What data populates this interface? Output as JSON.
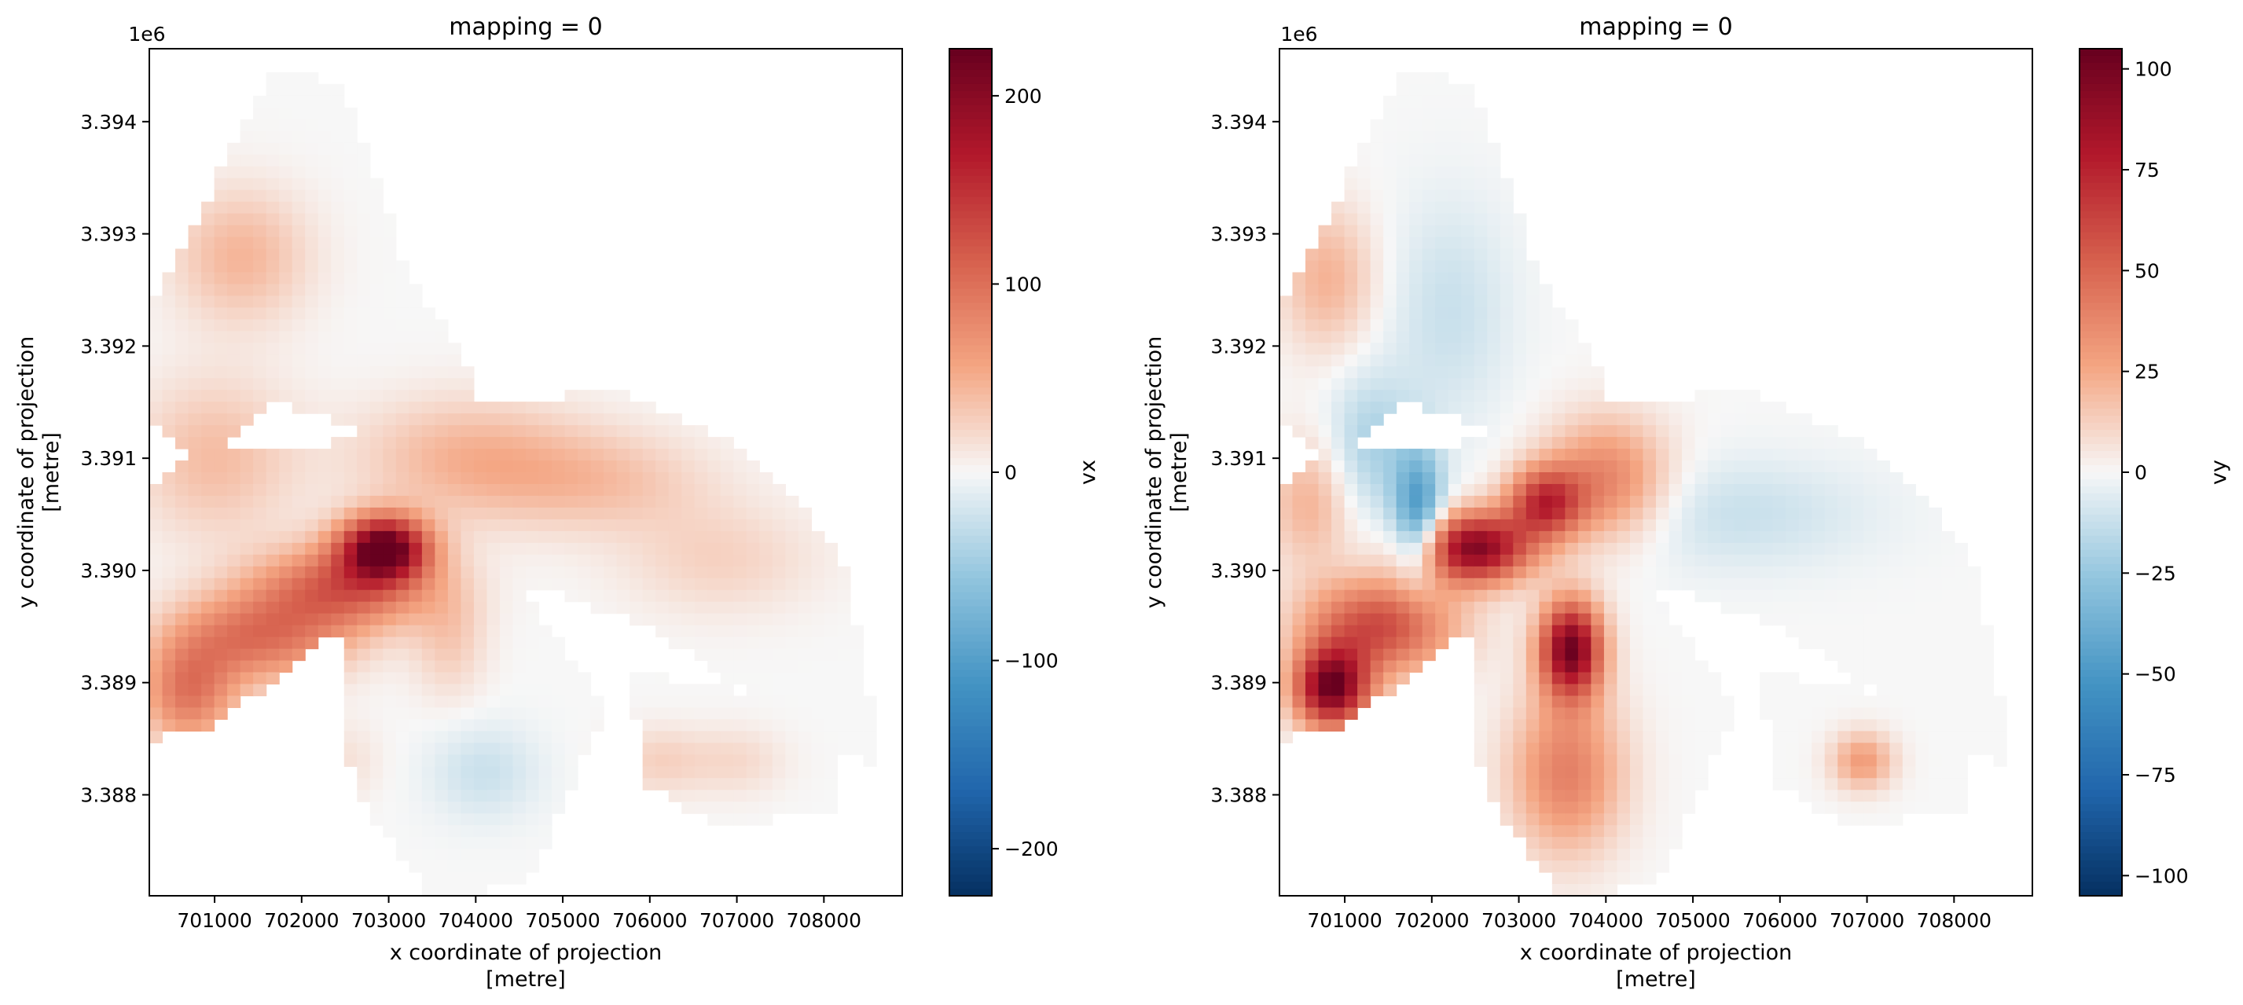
{
  "chart_data": [
    {
      "type": "heatmap",
      "title": "mapping = 0",
      "xlabel": "x coordinate of projection",
      "xlabel_unit": "[metre]",
      "ylabel": "y coordinate of projection",
      "ylabel_unit": "[metre]",
      "y_offset_label": "1e6",
      "xlim": [
        700250,
        708900
      ],
      "ylim": [
        3.3871,
        3.39465
      ],
      "x_ticks": [
        701000,
        702000,
        703000,
        704000,
        705000,
        706000,
        707000,
        708000
      ],
      "x_tick_labels": [
        "701000",
        "702000",
        "703000",
        "704000",
        "705000",
        "706000",
        "707000",
        "708000"
      ],
      "y_ticks": [
        3.388,
        3.389,
        3.39,
        3.391,
        3.392,
        3.393,
        3.394
      ],
      "y_tick_labels": [
        "3.388",
        "3.389",
        "3.390",
        "3.391",
        "3.392",
        "3.393",
        "3.394"
      ],
      "colorbar": {
        "label": "vx",
        "colormap": "RdBu_r",
        "vmin": -225,
        "vmax": 225,
        "ticks": [
          -200,
          -100,
          0,
          100,
          200
        ],
        "tick_labels": [
          "−200",
          "−100",
          "0",
          "100",
          "200"
        ]
      },
      "features": [
        {
          "x": 702950,
          "y": 3.3902,
          "sx": 350,
          "sy": 200,
          "value": 220
        },
        {
          "x": 702500,
          "y": 3.38985,
          "sx": 700,
          "sy": 260,
          "value": 110
        },
        {
          "x": 701500,
          "y": 3.3894,
          "sx": 700,
          "sy": 280,
          "value": 95
        },
        {
          "x": 700700,
          "y": 3.3889,
          "sx": 380,
          "sy": 320,
          "value": 90
        },
        {
          "x": 701000,
          "y": 3.391,
          "sx": 650,
          "sy": 500,
          "value": 40
        },
        {
          "x": 701300,
          "y": 3.3928,
          "sx": 550,
          "sy": 420,
          "value": 45
        },
        {
          "x": 703900,
          "y": 3.391,
          "sx": 900,
          "sy": 380,
          "value": 45
        },
        {
          "x": 705400,
          "y": 3.3908,
          "sx": 900,
          "sy": 320,
          "value": 35
        },
        {
          "x": 706800,
          "y": 3.3901,
          "sx": 800,
          "sy": 350,
          "value": 25
        },
        {
          "x": 703700,
          "y": 3.3894,
          "sx": 300,
          "sy": 380,
          "value": 30
        },
        {
          "x": 704100,
          "y": 3.3882,
          "sx": 450,
          "sy": 300,
          "value": -25
        },
        {
          "x": 706100,
          "y": 3.3883,
          "sx": 380,
          "sy": 220,
          "value": 25
        },
        {
          "x": 707000,
          "y": 3.3883,
          "sx": 400,
          "sy": 220,
          "value": 20
        },
        {
          "x": 702500,
          "y": 3.3883,
          "sx": 300,
          "sy": 250,
          "value": 15
        }
      ]
    },
    {
      "type": "heatmap",
      "title": "mapping = 0",
      "xlabel": "x coordinate of projection",
      "xlabel_unit": "[metre]",
      "ylabel": "y coordinate of projection",
      "ylabel_unit": "[metre]",
      "y_offset_label": "1e6",
      "xlim": [
        700250,
        708900
      ],
      "ylim": [
        3.3871,
        3.39465
      ],
      "x_ticks": [
        701000,
        702000,
        703000,
        704000,
        705000,
        706000,
        707000,
        708000
      ],
      "x_tick_labels": [
        "701000",
        "702000",
        "703000",
        "704000",
        "705000",
        "706000",
        "707000",
        "708000"
      ],
      "y_ticks": [
        3.388,
        3.389,
        3.39,
        3.391,
        3.392,
        3.393,
        3.394
      ],
      "y_tick_labels": [
        "3.388",
        "3.389",
        "3.390",
        "3.391",
        "3.392",
        "3.393",
        "3.394"
      ],
      "colorbar": {
        "label": "vy",
        "colormap": "RdBu_r",
        "vmin": -105,
        "vmax": 105,
        "ticks": [
          -100,
          -75,
          -50,
          -25,
          0,
          25,
          50,
          75,
          100
        ],
        "tick_labels": [
          "−100",
          "−75",
          "−50",
          "−25",
          "0",
          "25",
          "50",
          "75",
          "100"
        ]
      },
      "features": [
        {
          "x": 700850,
          "y": 3.38895,
          "sx": 300,
          "sy": 250,
          "value": 100
        },
        {
          "x": 701400,
          "y": 3.3895,
          "sx": 600,
          "sy": 300,
          "value": 60
        },
        {
          "x": 702500,
          "y": 3.3902,
          "sx": 450,
          "sy": 220,
          "value": 95
        },
        {
          "x": 703300,
          "y": 3.3906,
          "sx": 300,
          "sy": 220,
          "value": 65
        },
        {
          "x": 703600,
          "y": 3.3893,
          "sx": 250,
          "sy": 300,
          "value": 100
        },
        {
          "x": 703550,
          "y": 3.3882,
          "sx": 450,
          "sy": 500,
          "value": 40
        },
        {
          "x": 701850,
          "y": 3.3905,
          "sx": 200,
          "sy": 400,
          "value": -50
        },
        {
          "x": 701300,
          "y": 3.3911,
          "sx": 350,
          "sy": 450,
          "value": -20
        },
        {
          "x": 705500,
          "y": 3.3905,
          "sx": 1100,
          "sy": 350,
          "value": -12
        },
        {
          "x": 702200,
          "y": 3.3923,
          "sx": 500,
          "sy": 700,
          "value": -12
        },
        {
          "x": 700600,
          "y": 3.3906,
          "sx": 350,
          "sy": 400,
          "value": 22
        },
        {
          "x": 700800,
          "y": 3.3926,
          "sx": 380,
          "sy": 450,
          "value": 22
        },
        {
          "x": 704000,
          "y": 3.3908,
          "sx": 500,
          "sy": 380,
          "value": 40
        },
        {
          "x": 706950,
          "y": 3.3883,
          "sx": 250,
          "sy": 180,
          "value": 30
        }
      ]
    }
  ]
}
